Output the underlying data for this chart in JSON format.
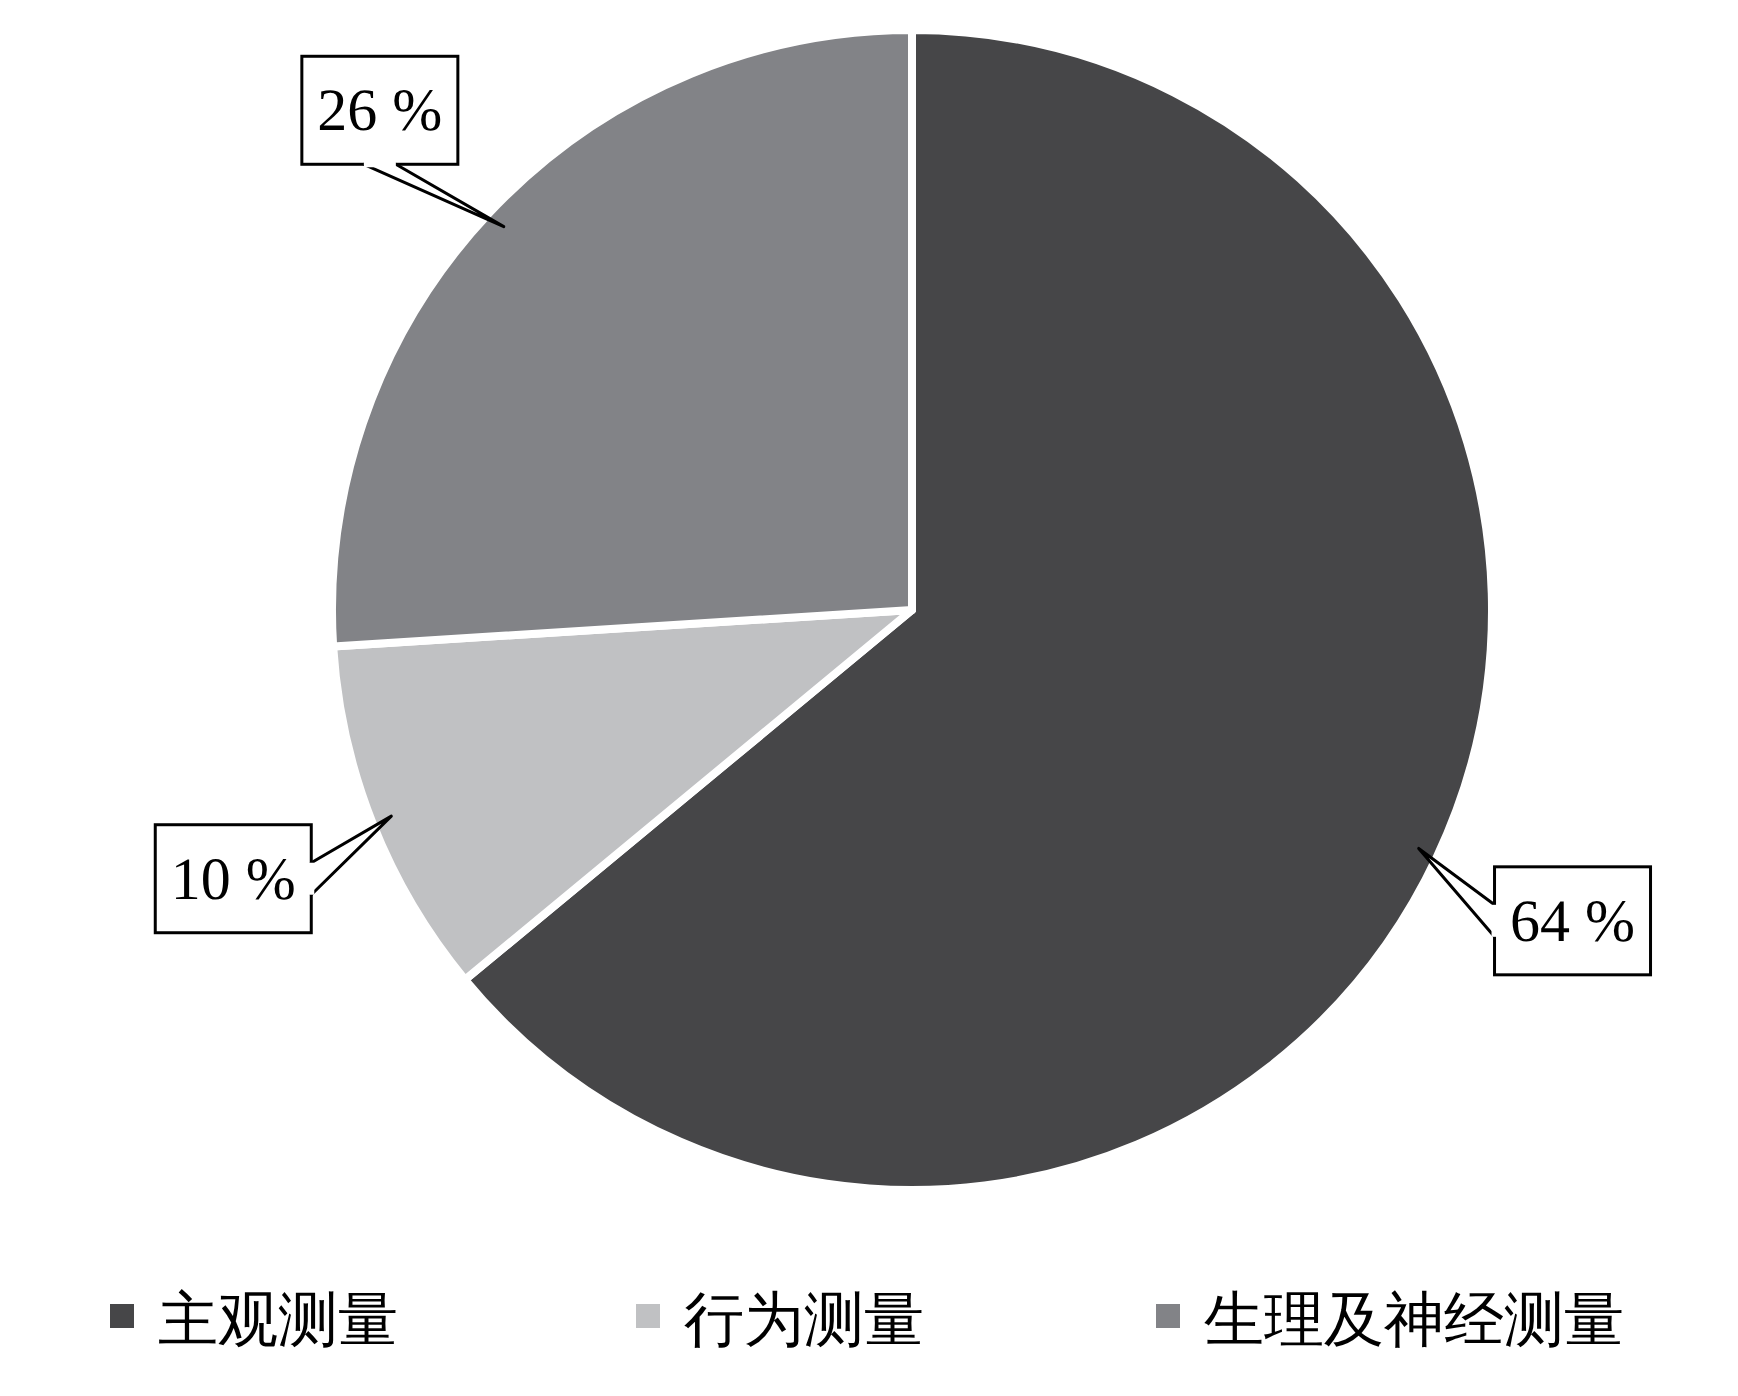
{
  "chart_data": {
    "type": "pie",
    "categories": [
      "主观测量",
      "行为测量",
      "生理及神经测量"
    ],
    "values": [
      64,
      10,
      26
    ],
    "colors": [
      "#464648",
      "#c0c1c3",
      "#828387"
    ],
    "value_labels": [
      "64 %",
      "10 %",
      "26 %"
    ],
    "legend": "bottom"
  }
}
